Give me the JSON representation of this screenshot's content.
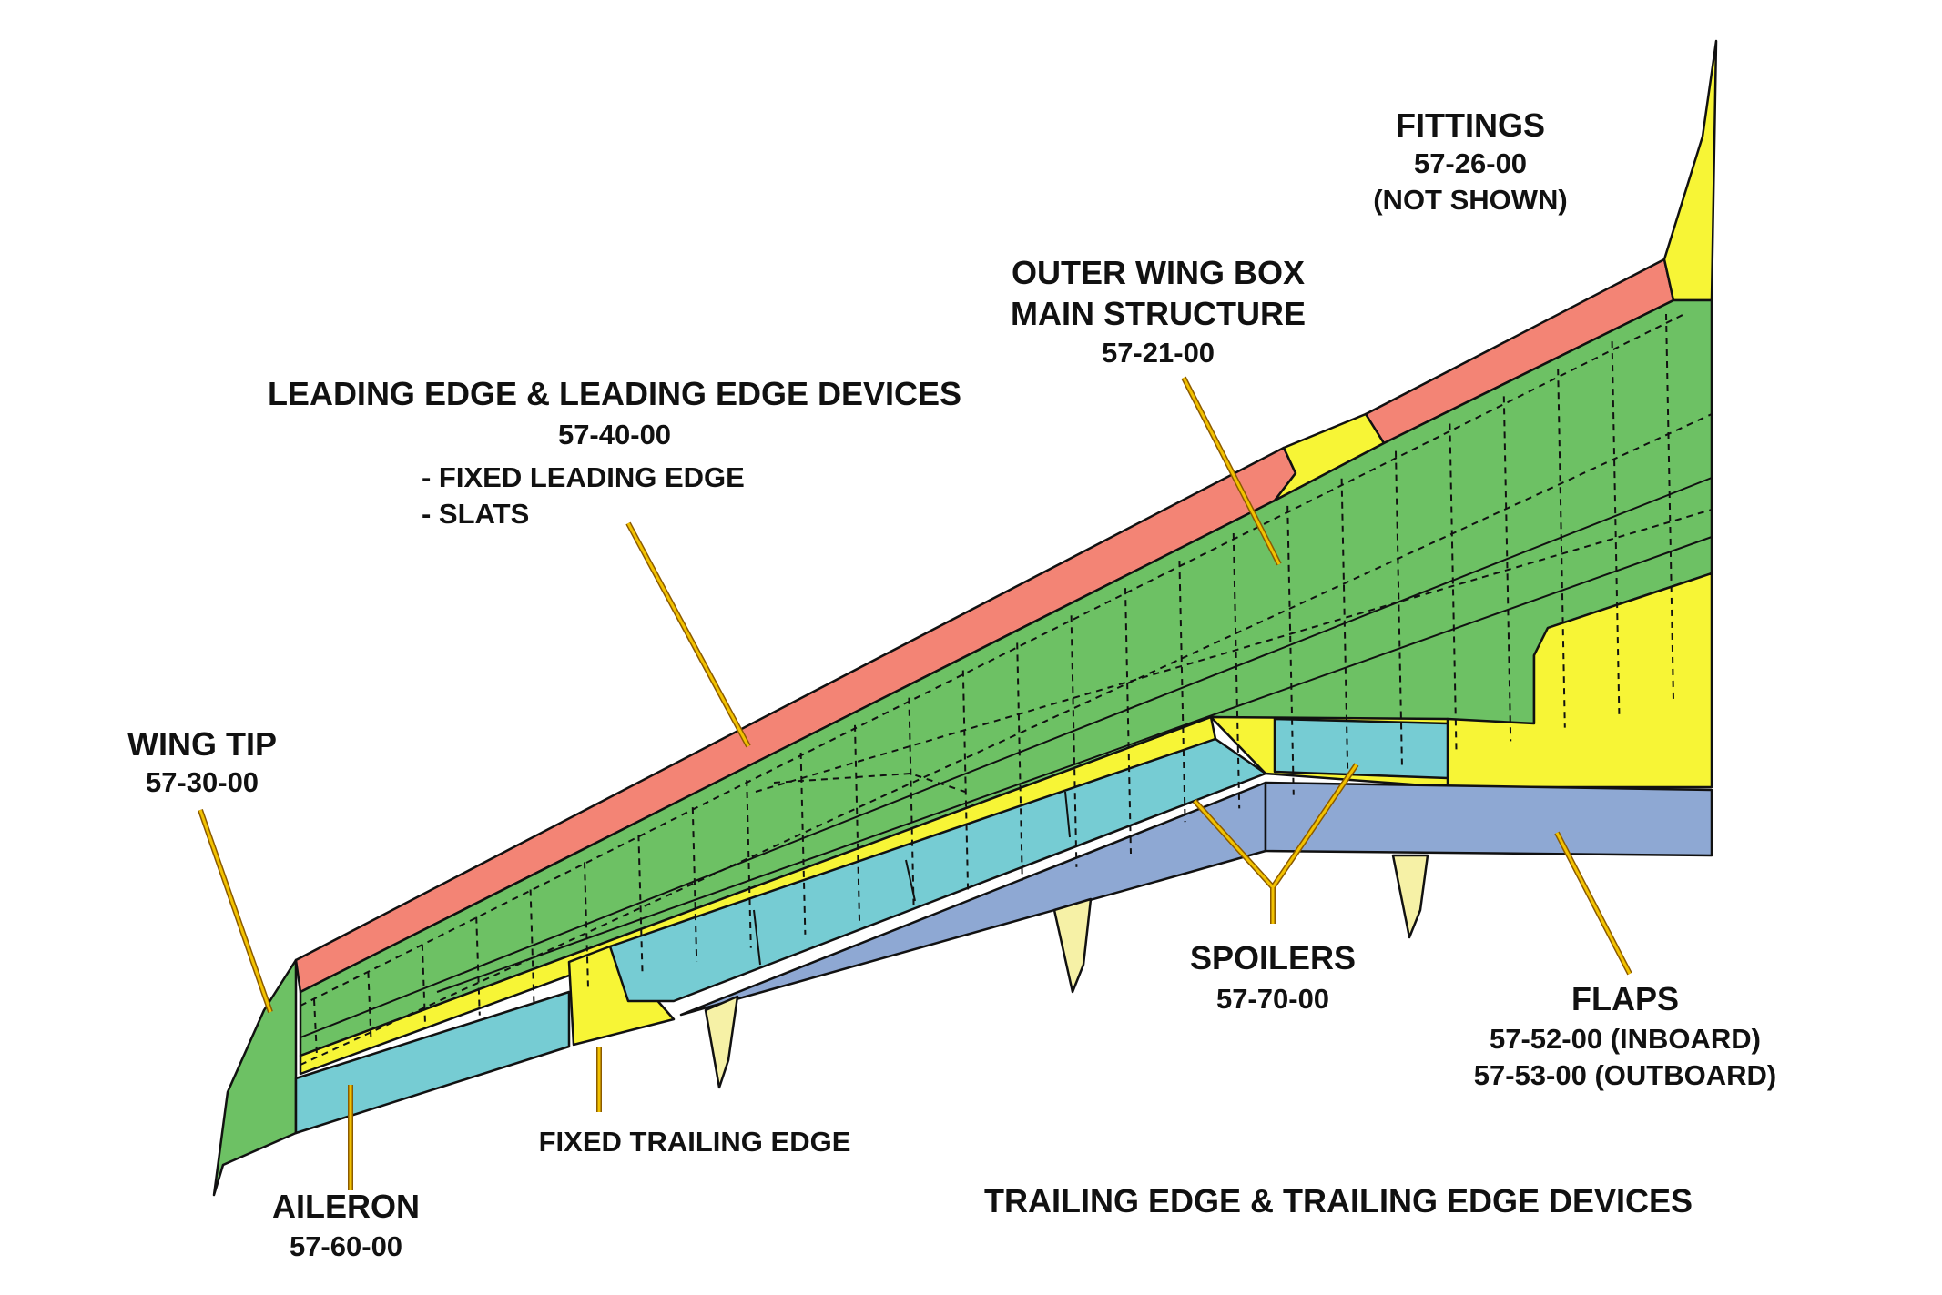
{
  "colors": {
    "leading_edge": "#F38475",
    "wing_box": "#6DC164",
    "yellow_parts": "#F7F536",
    "aileron_spoilers": "#76CCD3",
    "flaps": "#8EA8D3",
    "flap_tracks": "#F6F1A6",
    "leader_outer": "#8B5A00",
    "leader_inner": "#F2C200"
  },
  "labels": {
    "fittings": {
      "title": "FITTINGS",
      "code": "57-26-00",
      "note": "(NOT SHOWN)"
    },
    "outer_wing_box": {
      "title_line1": "OUTER WING BOX",
      "title_line2": "MAIN STRUCTURE",
      "code": "57-21-00"
    },
    "leading_edge": {
      "title": "LEADING EDGE & LEADING EDGE DEVICES",
      "code": "57-40-00",
      "item1": "- FIXED LEADING EDGE",
      "item2": "- SLATS"
    },
    "wing_tip": {
      "title": "WING TIP",
      "code": "57-30-00"
    },
    "aileron": {
      "title": "AILERON",
      "code": "57-60-00"
    },
    "fixed_trailing_edge": {
      "title": "FIXED TRAILING EDGE"
    },
    "spoilers": {
      "title": "SPOILERS",
      "code": "57-70-00"
    },
    "flaps": {
      "title": "FLAPS",
      "code_inboard": "57-52-00 (INBOARD)",
      "code_outboard": "57-53-00 (OUTBOARD)"
    },
    "trailing_edge_group": {
      "title": "TRAILING EDGE & TRAILING EDGE DEVICES"
    }
  }
}
